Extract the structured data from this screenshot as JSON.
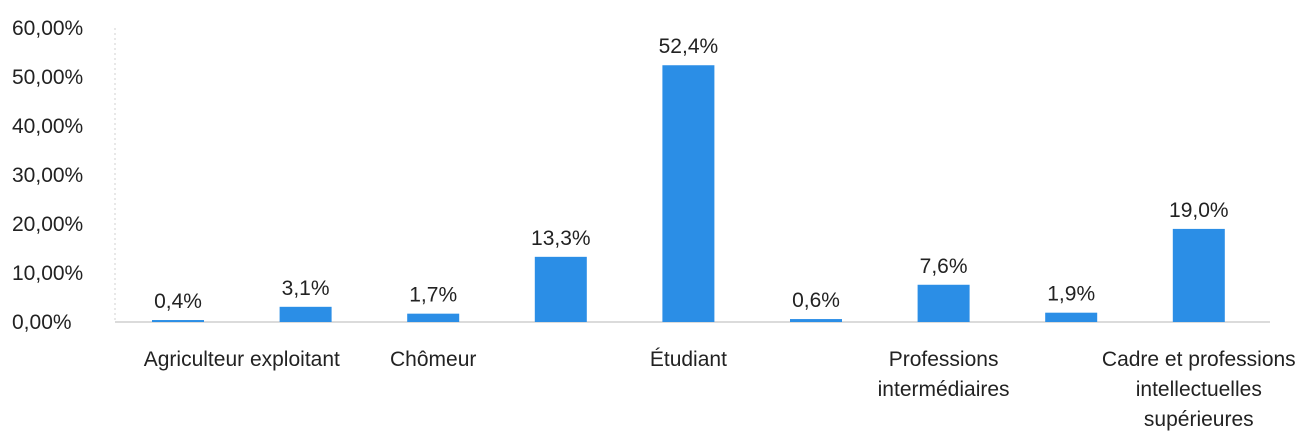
{
  "chart_data": {
    "type": "bar",
    "title": "",
    "xlabel": "",
    "ylabel": "",
    "ylim": [
      0,
      0.6
    ],
    "y_ticks": [
      "0,00%",
      "10,00%",
      "20,00%",
      "30,00%",
      "40,00%",
      "50,00%",
      "60,00%"
    ],
    "y_tick_values": [
      0,
      0.1,
      0.2,
      0.3,
      0.4,
      0.5,
      0.6
    ],
    "grid": false,
    "bar_color": "#2b8ee6",
    "values": [
      0.004,
      0.031,
      0.017,
      0.133,
      0.524,
      0.006,
      0.076,
      0.019,
      0.19
    ],
    "data_labels": [
      "0,4%",
      "3,1%",
      "1,7%",
      "13,3%",
      "52,4%",
      "0,6%",
      "7,6%",
      "1,9%",
      "19,0%"
    ],
    "category_labels": [
      {
        "bar_index": 0.5,
        "lines": [
          "Agriculteur exploitant"
        ]
      },
      {
        "bar_index": 2,
        "lines": [
          "Chômeur"
        ]
      },
      {
        "bar_index": 4,
        "lines": [
          "Étudiant"
        ]
      },
      {
        "bar_index": 6,
        "lines": [
          "Professions",
          "intermédiaires"
        ]
      },
      {
        "bar_index": 8,
        "lines": [
          "Cadre et professions",
          "intellectuelles",
          "supérieures"
        ]
      }
    ]
  }
}
